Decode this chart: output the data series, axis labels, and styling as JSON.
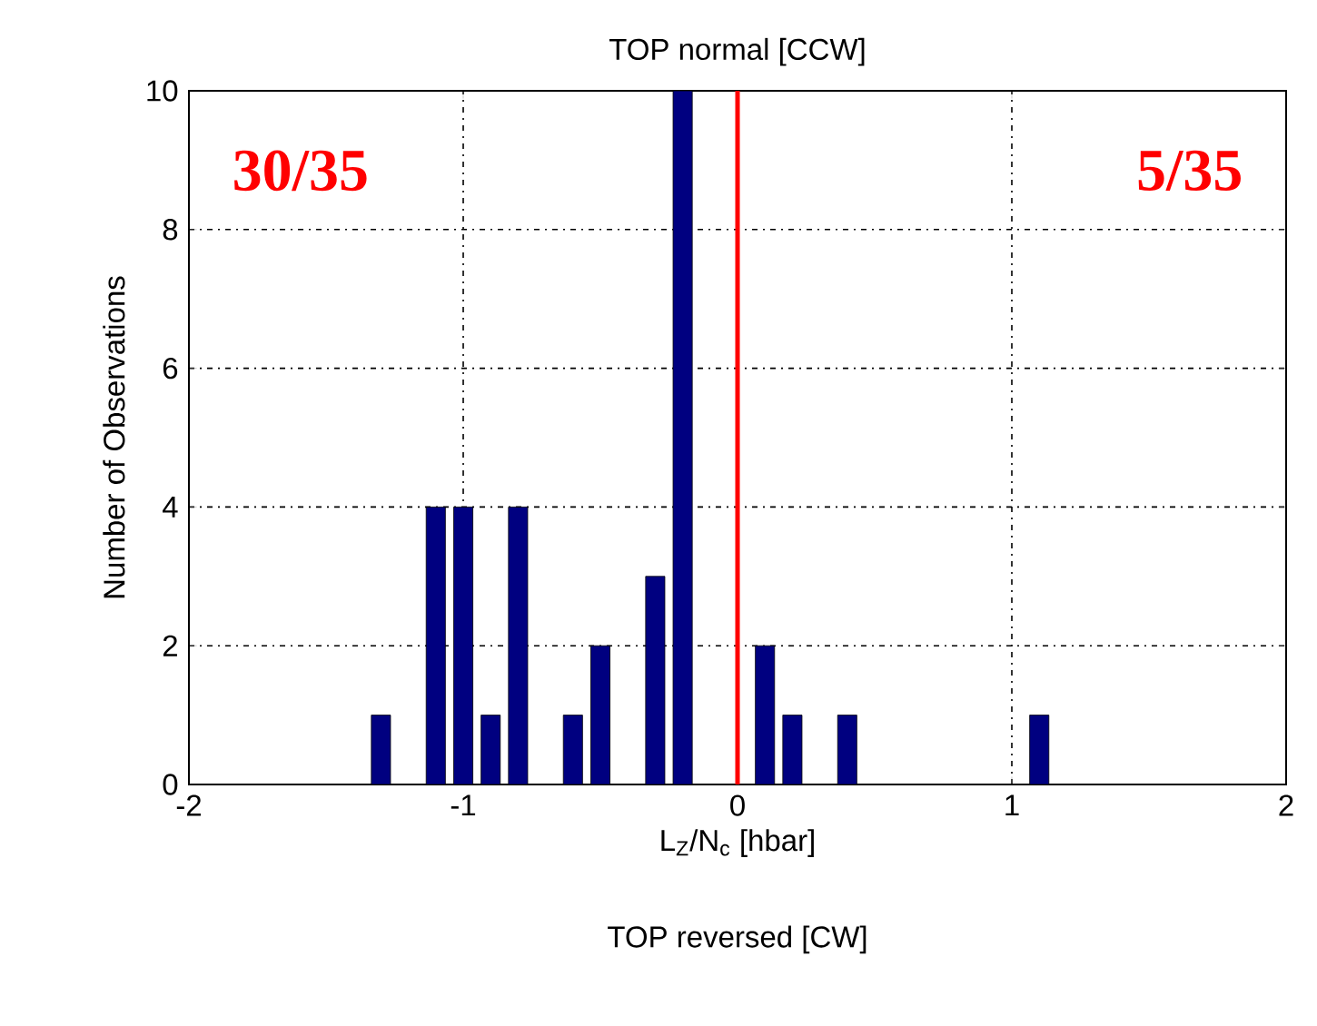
{
  "chart_data": {
    "type": "bar",
    "title": "TOP normal [CCW]",
    "xlabel": "L$_{Z}$/N$_{c}$ [hbar]",
    "ylabel": "Number of Observations",
    "x": [
      -1.3,
      -1.1,
      -1.0,
      -0.9,
      -0.8,
      -0.6,
      -0.5,
      -0.3,
      -0.2,
      0.1,
      0.2,
      0.4,
      1.1
    ],
    "values": [
      1,
      4,
      4,
      1,
      4,
      1,
      2,
      3,
      10,
      2,
      1,
      1,
      1
    ],
    "color": "#000080",
    "xlim": [
      -2,
      2
    ],
    "xticks": [
      -2,
      -1,
      0,
      1,
      2
    ],
    "ylim": [
      0,
      10
    ],
    "yticks": [
      0,
      2,
      4,
      6,
      8,
      10
    ],
    "grid": true,
    "ref_lines": [
      {
        "axis": "x",
        "value": 0,
        "color": "#ff0000"
      }
    ],
    "annotations": [
      "30/35",
      "5/35",
      "TOP reversed [CW]"
    ]
  }
}
